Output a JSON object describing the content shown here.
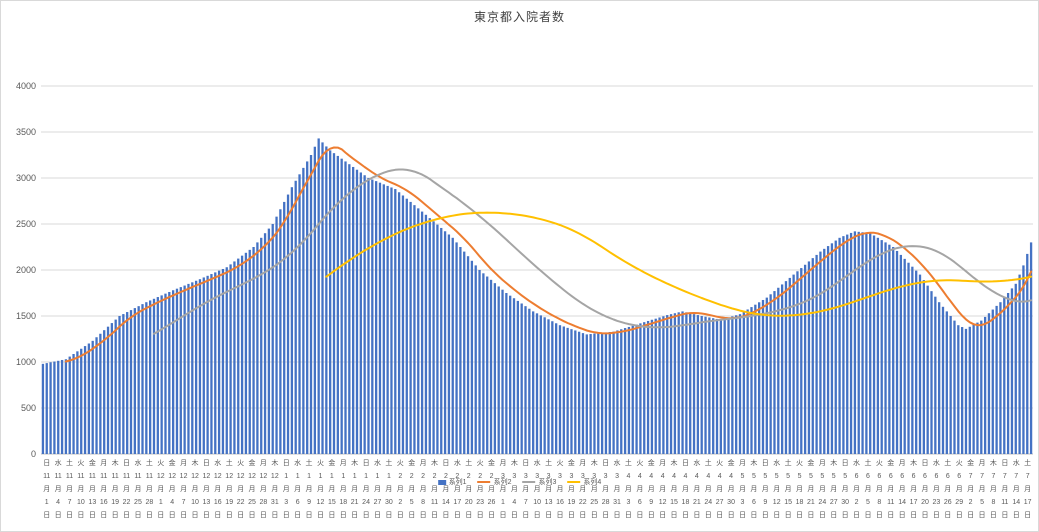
{
  "chart_data": {
    "type": "bar",
    "title": "東京都入院者数",
    "xlabel": "",
    "ylabel": "",
    "ylim": [
      0,
      4000
    ],
    "y_axis": {
      "min": 0,
      "max": 4000,
      "step": 500,
      "tick_labels": [
        0,
        500,
        1000,
        1500,
        2000,
        2500,
        3000,
        3500,
        4000
      ]
    },
    "grid": "horizontal",
    "legend_position": "bottom",
    "start_date": "2020-11-01",
    "end_date": "2021-07-17",
    "x_tick_interval_days": 3,
    "dow_names": [
      "日",
      "月",
      "火",
      "水",
      "木",
      "金",
      "土"
    ],
    "month_suffix": "月",
    "day_suffix": "日",
    "colors": {
      "bar": "#4472c4",
      "line1": "#ed7d31",
      "line2": "#a5a5a5",
      "line3": "#ffc000",
      "gridline": "#d9d9d9",
      "axis": "#bfbfbf",
      "text": "#595959"
    },
    "series": [
      {
        "name": "系列1",
        "type": "bar",
        "color": "#4472c4",
        "values": [
          980,
          988,
          997,
          1005,
          1013,
          1022,
          1030,
          1059,
          1087,
          1116,
          1144,
          1173,
          1201,
          1230,
          1269,
          1307,
          1346,
          1384,
          1423,
          1461,
          1500,
          1521,
          1543,
          1564,
          1586,
          1607,
          1629,
          1650,
          1669,
          1687,
          1706,
          1724,
          1743,
          1761,
          1780,
          1797,
          1814,
          1831,
          1849,
          1866,
          1883,
          1900,
          1919,
          1937,
          1956,
          1974,
          1993,
          2011,
          2030,
          2061,
          2093,
          2124,
          2156,
          2187,
          2219,
          2250,
          2300,
          2350,
          2400,
          2450,
          2500,
          2580,
          2660,
          2740,
          2820,
          2900,
          2970,
          3040,
          3110,
          3180,
          3250,
          3340,
          3430,
          3387,
          3343,
          3300,
          3270,
          3240,
          3210,
          3180,
          3150,
          3120,
          3090,
          3060,
          3030,
          3000,
          2983,
          2966,
          2949,
          2931,
          2914,
          2897,
          2880,
          2845,
          2810,
          2775,
          2740,
          2705,
          2670,
          2635,
          2600,
          2564,
          2529,
          2493,
          2457,
          2421,
          2386,
          2350,
          2300,
          2250,
          2200,
          2150,
          2100,
          2050,
          2000,
          1964,
          1929,
          1893,
          1857,
          1821,
          1786,
          1750,
          1721,
          1693,
          1664,
          1636,
          1607,
          1579,
          1550,
          1529,
          1507,
          1486,
          1464,
          1443,
          1421,
          1400,
          1386,
          1371,
          1357,
          1343,
          1329,
          1314,
          1300,
          1304,
          1309,
          1313,
          1317,
          1321,
          1326,
          1330,
          1343,
          1356,
          1369,
          1381,
          1394,
          1407,
          1420,
          1433,
          1446,
          1459,
          1471,
          1484,
          1497,
          1510,
          1520,
          1530,
          1540,
          1550,
          1540,
          1530,
          1520,
          1510,
          1500,
          1492,
          1484,
          1476,
          1468,
          1460,
          1472,
          1484,
          1496,
          1508,
          1520,
          1546,
          1571,
          1597,
          1623,
          1649,
          1674,
          1700,
          1736,
          1771,
          1807,
          1843,
          1879,
          1914,
          1950,
          1986,
          2021,
          2057,
          2093,
          2129,
          2164,
          2200,
          2230,
          2260,
          2290,
          2320,
          2350,
          2368,
          2385,
          2403,
          2420,
          2415,
          2410,
          2405,
          2400,
          2375,
          2350,
          2325,
          2300,
          2275,
          2250,
          2207,
          2164,
          2121,
          2079,
          2036,
          1993,
          1950,
          1890,
          1830,
          1770,
          1710,
          1650,
          1600,
          1550,
          1500,
          1450,
          1400,
          1380,
          1360,
          1383,
          1405,
          1428,
          1450,
          1490,
          1530,
          1570,
          1610,
          1650,
          1700,
          1750,
          1800,
          1850,
          1950,
          2050,
          2175,
          2300
        ]
      },
      {
        "name": "系列2",
        "type": "line",
        "color": "#ed7d31",
        "derived": "moving_average",
        "window": 7
      },
      {
        "name": "系列3",
        "type": "line",
        "color": "#a5a5a5",
        "derived": "moving_average",
        "window": 30
      },
      {
        "name": "系列4",
        "type": "line",
        "color": "#ffc000",
        "derived": "moving_average",
        "window": 75
      }
    ]
  }
}
